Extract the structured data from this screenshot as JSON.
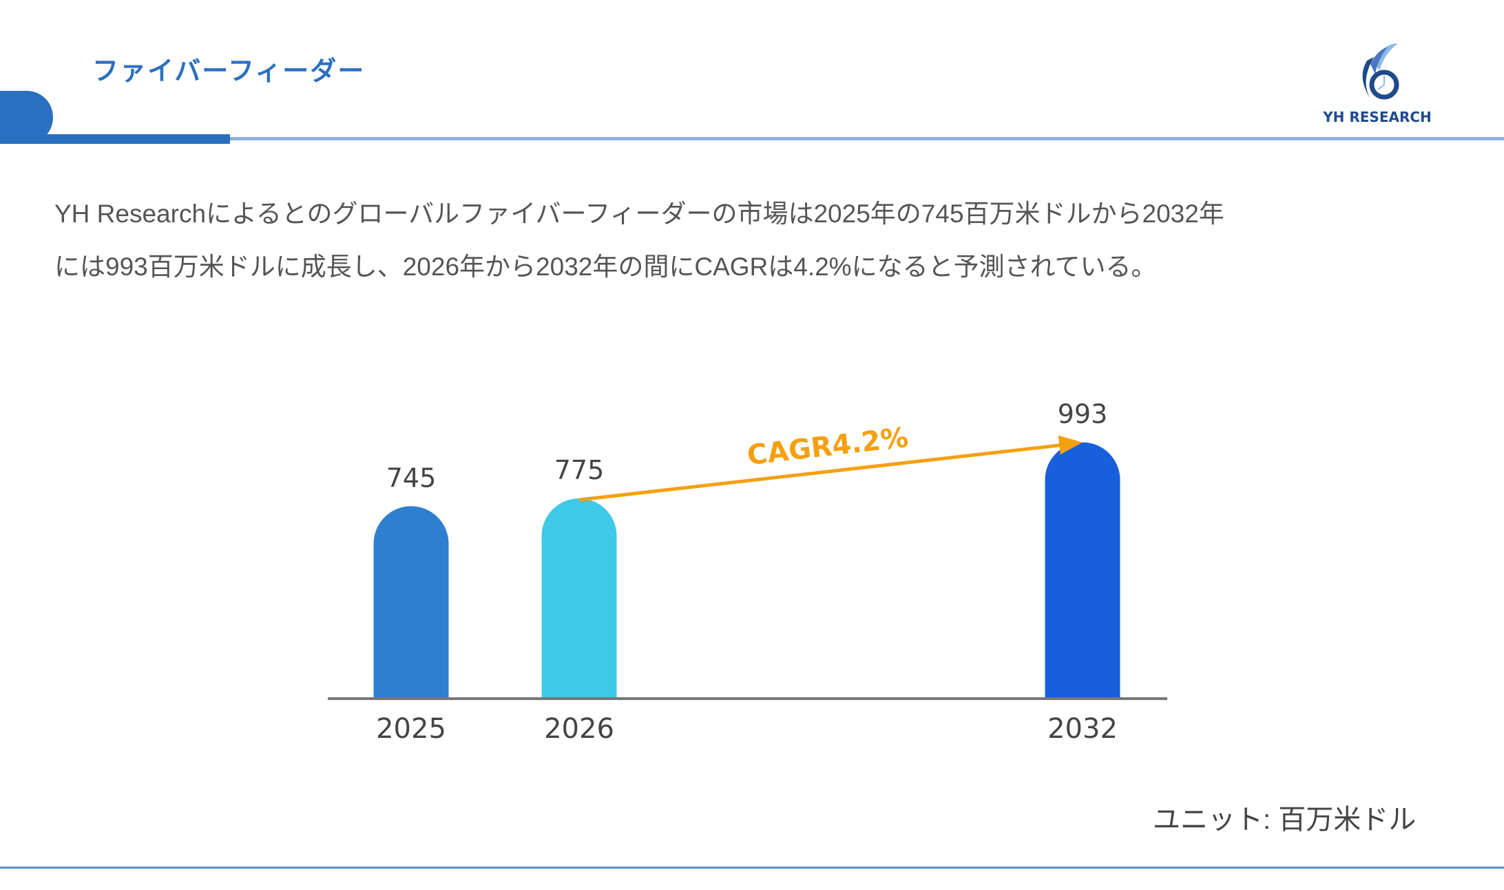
{
  "header": {
    "title": "ファイバーフィーダー",
    "logo_text": "YH RESEARCH"
  },
  "description": [
    "YH Researchによるとのグローバルファイバーフィーダーの市場は2025年の745百万米ドルから2032年",
    "には993百万米ドルに成長し、2026年から2032年の間にCAGRは4.2%になると予測されている。"
  ],
  "chart_data": {
    "type": "bar",
    "categories": [
      "2025",
      "2026",
      "2032"
    ],
    "values": [
      745,
      775,
      993
    ],
    "colors": [
      "#2f7fd1",
      "#3ec9e6",
      "#175fdc"
    ],
    "annotation": {
      "text": "CAGR4.2%",
      "from": "2026",
      "to": "2032",
      "color": "#f5a010"
    },
    "ylim": [
      0,
      993
    ],
    "grid": false
  },
  "unit_label": "ユニット: 百万米ドル"
}
